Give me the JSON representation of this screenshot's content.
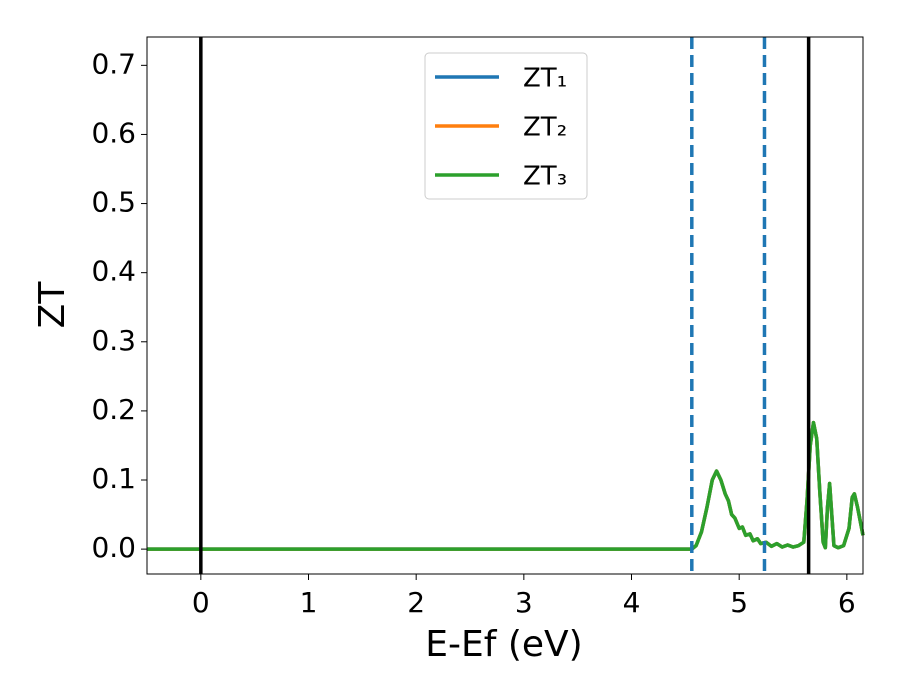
{
  "chart_data": {
    "type": "line",
    "xlabel": "E-Ef (eV)",
    "ylabel": "ZT",
    "xlim": [
      -0.5,
      6.15
    ],
    "ylim": [
      -0.036,
      0.741
    ],
    "xticks": [
      0,
      1,
      2,
      3,
      4,
      5,
      6
    ],
    "yticks": [
      {
        "value": 0,
        "label": "0.0"
      },
      0.1,
      0.2,
      0.3,
      0.4,
      0.5,
      0.6,
      0.7
    ],
    "legend": "upper center",
    "vlines": [
      {
        "x": 0,
        "color": "#000000",
        "style": "solid"
      },
      {
        "x": 4.56,
        "color": "#1f77b4",
        "style": "dashed"
      },
      {
        "x": 5.235,
        "color": "#1f77b4",
        "style": "dashed"
      },
      {
        "x": 5.645,
        "color": "#000000",
        "style": "solid"
      }
    ],
    "x": [
      -0.5,
      4.56,
      4.6,
      4.65,
      4.7,
      4.75,
      4.79,
      4.83,
      4.87,
      4.9,
      4.93,
      4.96,
      5.0,
      5.03,
      5.06,
      5.1,
      5.13,
      5.17,
      5.2,
      5.25,
      5.3,
      5.35,
      5.4,
      5.45,
      5.5,
      5.55,
      5.6,
      5.63,
      5.66,
      5.69,
      5.72,
      5.75,
      5.78,
      5.8,
      5.82,
      5.84,
      5.86,
      5.88,
      5.92,
      5.97,
      6.02,
      6.05,
      6.07,
      6.1,
      6.15
    ],
    "series": [
      {
        "name": "ZT₁",
        "color": "#1f77b4",
        "values": [
          0,
          0,
          0.005,
          0.025,
          0.06,
          0.1,
          0.113,
          0.1,
          0.08,
          0.07,
          0.05,
          0.045,
          0.03,
          0.032,
          0.02,
          0.022,
          0.012,
          0.015,
          0.008,
          0.01,
          0.004,
          0.008,
          0.003,
          0.006,
          0.003,
          0.005,
          0.01,
          0.07,
          0.15,
          0.183,
          0.16,
          0.08,
          0.01,
          0.002,
          0.06,
          0.095,
          0.05,
          0.005,
          0.002,
          0.005,
          0.03,
          0.075,
          0.08,
          0.06,
          0.02
        ]
      },
      {
        "name": "ZT₂",
        "color": "#ff7f0e",
        "values": [
          0,
          0,
          0.005,
          0.025,
          0.06,
          0.1,
          0.113,
          0.1,
          0.08,
          0.07,
          0.05,
          0.045,
          0.03,
          0.032,
          0.02,
          0.022,
          0.012,
          0.015,
          0.008,
          0.01,
          0.004,
          0.008,
          0.003,
          0.006,
          0.003,
          0.005,
          0.01,
          0.07,
          0.15,
          0.183,
          0.16,
          0.08,
          0.01,
          0.002,
          0.06,
          0.095,
          0.05,
          0.005,
          0.002,
          0.005,
          0.03,
          0.075,
          0.08,
          0.06,
          0.02
        ]
      },
      {
        "name": "ZT₃",
        "color": "#2ca02c",
        "values": [
          0,
          0,
          0.005,
          0.025,
          0.06,
          0.1,
          0.113,
          0.1,
          0.08,
          0.07,
          0.05,
          0.045,
          0.03,
          0.032,
          0.02,
          0.022,
          0.012,
          0.015,
          0.008,
          0.01,
          0.004,
          0.008,
          0.003,
          0.006,
          0.003,
          0.005,
          0.01,
          0.07,
          0.15,
          0.183,
          0.16,
          0.08,
          0.01,
          0.002,
          0.06,
          0.095,
          0.05,
          0.005,
          0.002,
          0.005,
          0.03,
          0.075,
          0.08,
          0.06,
          0.02
        ]
      }
    ]
  }
}
